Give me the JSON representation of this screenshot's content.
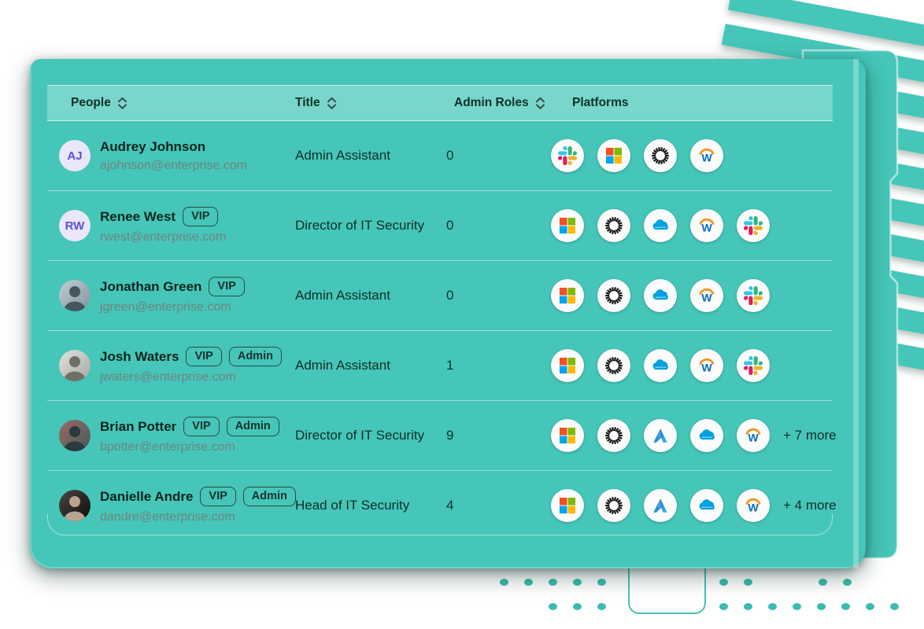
{
  "header": {
    "columns": [
      {
        "label": "People",
        "sortable": true
      },
      {
        "label": "Title",
        "sortable": true
      },
      {
        "label": "Admin Roles",
        "sortable": true
      },
      {
        "label": "Platforms",
        "sortable": false
      }
    ]
  },
  "rows": [
    {
      "name": "Audrey Johnson",
      "email": "ajohnson@enterprise.com",
      "badges": [],
      "title": "Admin Assistant",
      "admin_roles": "0",
      "platforms": [
        "slack",
        "microsoft",
        "sunburst",
        "workday"
      ],
      "more": "",
      "avatar": {
        "type": "initials",
        "initials": "AJ",
        "bg": "#EAE7F8",
        "fg": "#5B50D8"
      }
    },
    {
      "name": "Renee West",
      "email": "rwest@enterprise.com",
      "badges": [
        "VIP"
      ],
      "title": "Director of IT Security",
      "admin_roles": "0",
      "platforms": [
        "microsoft",
        "sunburst",
        "salesforce",
        "workday",
        "slack"
      ],
      "more": "",
      "avatar": {
        "type": "initials",
        "initials": "RW",
        "bg": "#EAE7F8",
        "fg": "#5B50D8"
      }
    },
    {
      "name": "Jonathan Green",
      "email": "jgreen@enterprise.com",
      "badges": [
        "VIP"
      ],
      "title": "Admin Assistant",
      "admin_roles": "0",
      "platforms": [
        "microsoft",
        "sunburst",
        "salesforce",
        "workday",
        "slack"
      ],
      "more": "",
      "avatar": {
        "type": "photo",
        "bg1": "#C3CDD2",
        "bg2": "#7E949E",
        "fg": "#44565F"
      }
    },
    {
      "name": "Josh Waters",
      "email": "jwaters@enterprise.com",
      "badges": [
        "VIP",
        "Admin"
      ],
      "title": "Admin Assistant",
      "admin_roles": "1",
      "platforms": [
        "microsoft",
        "sunburst",
        "salesforce",
        "workday",
        "slack"
      ],
      "more": "",
      "avatar": {
        "type": "photo",
        "bg1": "#E2E1DD",
        "bg2": "#A7A8A3",
        "fg": "#6E7066"
      }
    },
    {
      "name": "Brian Potter",
      "email": "bpotter@enterprise.com",
      "badges": [
        "VIP",
        "Admin"
      ],
      "title": "Director of IT Security",
      "admin_roles": "9",
      "platforms": [
        "microsoft",
        "sunburst",
        "azure",
        "salesforce",
        "workday"
      ],
      "more": "+ 7 more",
      "avatar": {
        "type": "photo",
        "bg1": "#9C6A62",
        "bg2": "#435A5E",
        "fg": "#2B3A3E"
      }
    },
    {
      "name": "Danielle Andre",
      "email": "dandre@enterprise.com",
      "badges": [
        "VIP",
        "Admin"
      ],
      "title": "Head of IT Security",
      "admin_roles": "4",
      "platforms": [
        "microsoft",
        "sunburst",
        "azure",
        "salesforce",
        "workday"
      ],
      "more": "+ 4 more",
      "avatar": {
        "type": "photo",
        "bg1": "#4A4642",
        "bg2": "#0C0C0C",
        "fg": "#B9A58F"
      }
    }
  ],
  "platform_labels": {
    "slack": "Slack",
    "microsoft": "Microsoft",
    "sunburst": "Sunburst",
    "salesforce": "Salesforce",
    "workday": "Workday",
    "azure": "Azure"
  },
  "colors": {
    "teal": "#45C6B8",
    "dot_teal": "#3ABDAF",
    "header_strip": "rgba(255,255,255,0.28)",
    "text_dark": "#122E29",
    "text_muted": "#6F8480",
    "badge_border": "#2C4A45",
    "avatar_purple": "#5B50D8",
    "slack": [
      "#36C5F0",
      "#2EB67D",
      "#ECB22E",
      "#E01E5A"
    ],
    "microsoft": [
      "#F25022",
      "#7FBA00",
      "#00A4EF",
      "#FFB900"
    ],
    "salesforce_blue": "#00A1E0",
    "workday_blue": "#0A6DBD",
    "workday_orange": "#F7941E",
    "azure_blue_1": "#1565B8",
    "azure_blue_2": "#38B8EF"
  }
}
